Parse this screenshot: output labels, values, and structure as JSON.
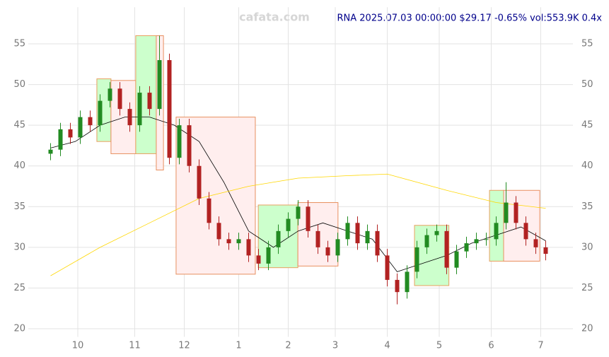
{
  "chart_data": {
    "type": "candlestick",
    "title": "RNA 2025.07.03 00:00:00 $29.17 -0.65% vol:553.9K 0.4x",
    "watermark": "cafata.com",
    "xlim": [
      -9,
      211
    ],
    "xticks": [
      {
        "value": 11,
        "label": "10"
      },
      {
        "value": 34,
        "label": "11"
      },
      {
        "value": 54,
        "label": "12"
      },
      {
        "value": 76,
        "label": "1"
      },
      {
        "value": 96,
        "label": "2"
      },
      {
        "value": 115,
        "label": "3"
      },
      {
        "value": 136,
        "label": "4"
      },
      {
        "value": 157,
        "label": "5"
      },
      {
        "value": 178,
        "label": "6"
      },
      {
        "value": 198,
        "label": "7"
      }
    ],
    "ylim": [
      19,
      59.5
    ],
    "yticks": [
      20,
      25,
      30,
      35,
      40,
      45,
      50,
      55
    ],
    "grid": true,
    "up_color": "#228b22",
    "down_color": "#b22222",
    "x": [
      0,
      4,
      8,
      12,
      16,
      20,
      24,
      28,
      32,
      36,
      40,
      44,
      48,
      52,
      56,
      60,
      64,
      68,
      72,
      76,
      80,
      84,
      88,
      92,
      96,
      100,
      104,
      108,
      112,
      116,
      120,
      124,
      128,
      132,
      136,
      140,
      144,
      148,
      152,
      156,
      160,
      164,
      168,
      172,
      176,
      180,
      184,
      188,
      192,
      196,
      200
    ],
    "open": [
      41.5,
      42,
      44.5,
      43.5,
      46,
      45,
      48,
      49.5,
      47,
      45,
      49,
      47,
      53,
      41,
      45,
      40,
      36,
      33,
      31,
      30.5,
      31,
      29,
      28,
      30,
      32,
      33.5,
      35,
      32,
      30,
      29,
      31,
      33,
      30.5,
      32,
      29,
      26,
      24.5,
      27,
      30,
      31.5,
      32,
      27.5,
      29.5,
      30.5,
      31,
      31,
      33,
      35.5,
      33,
      31,
      30
    ],
    "high": [
      42.8,
      45.3,
      45.3,
      46.8,
      46.8,
      48.8,
      50.3,
      50.3,
      47.8,
      49.8,
      49.8,
      56,
      53.8,
      45.8,
      45.8,
      40.8,
      36.8,
      33.8,
      31.8,
      31.8,
      31.8,
      29.8,
      30.8,
      32.8,
      34.3,
      35.8,
      35.8,
      32.8,
      30.8,
      31.8,
      33.8,
      33.8,
      32.8,
      32.8,
      29.8,
      26.8,
      27.8,
      30.8,
      32.3,
      32.8,
      32.8,
      30.3,
      31.3,
      31.8,
      31.8,
      33.8,
      38,
      36.3,
      33.8,
      31.8,
      30.8
    ],
    "low": [
      40.7,
      41.2,
      42.7,
      42.7,
      44.2,
      44.2,
      47.2,
      46.2,
      44.2,
      44.2,
      46.2,
      46.2,
      40.2,
      40.2,
      39.2,
      35.2,
      32.2,
      30.2,
      29.7,
      29.7,
      28.2,
      27.2,
      27.2,
      29.2,
      31.2,
      32.7,
      31.2,
      29.2,
      28.2,
      28.2,
      30.2,
      29.7,
      29.7,
      28.2,
      25.2,
      23,
      23.7,
      26.2,
      29.2,
      30.7,
      26.7,
      26.7,
      28.7,
      29.7,
      30.2,
      30.2,
      32.2,
      32.2,
      30.2,
      29.2,
      28.4
    ],
    "close": [
      42,
      44.5,
      43.5,
      46,
      45,
      48,
      49.5,
      47,
      45,
      49,
      47,
      53,
      41,
      45,
      40,
      36,
      33,
      31,
      30.5,
      31,
      29,
      28,
      30,
      32,
      33.5,
      35,
      32,
      30,
      29,
      31,
      33,
      30.5,
      32,
      29,
      26,
      24.5,
      27,
      30,
      31.5,
      32,
      27.5,
      29.5,
      30.5,
      31,
      31,
      33,
      35.5,
      33,
      31,
      30,
      29.2
    ],
    "lines": [
      {
        "color": "#000000",
        "x": [
          0,
          10,
          20,
          30,
          40,
          50,
          60,
          70,
          80,
          90,
          100,
          110,
          120,
          130,
          140,
          150,
          160,
          170,
          180,
          190,
          200
        ],
        "values": [
          42.2,
          43,
          45,
          46,
          46,
          45,
          43,
          38,
          32,
          30,
          32,
          33,
          32,
          31,
          27,
          28,
          29,
          30.5,
          31.5,
          32.5,
          30.8
        ]
      },
      {
        "color": "#ffd700",
        "x": [
          0,
          20,
          40,
          60,
          80,
          100,
          120,
          136,
          160,
          180,
          200
        ],
        "values": [
          26.5,
          30,
          33,
          36,
          37.5,
          38.5,
          38.8,
          39,
          37,
          35.5,
          34.8
        ]
      }
    ],
    "boxes": [
      {
        "kind": "up",
        "x": [
          18.7,
          24.4
        ],
        "low": 43,
        "high": 50.7
      },
      {
        "kind": "down",
        "x": [
          24.4,
          34.4
        ],
        "low": 41.5,
        "high": 50.5
      },
      {
        "kind": "up",
        "x": [
          34.4,
          42.7
        ],
        "low": 41.5,
        "high": 56
      },
      {
        "kind": "down",
        "x": [
          42.7,
          45.6
        ],
        "low": 39.5,
        "high": 56
      },
      {
        "kind": "down",
        "x": [
          50.7,
          82.7
        ],
        "low": 26.7,
        "high": 46
      },
      {
        "kind": "up",
        "x": [
          83.9,
          99.9
        ],
        "low": 27.5,
        "high": 35.2
      },
      {
        "kind": "down",
        "x": [
          99.9,
          116.1
        ],
        "low": 27.7,
        "high": 35.5
      },
      {
        "kind": "up",
        "x": [
          147,
          160.9
        ],
        "low": 25.3,
        "high": 32.7
      },
      {
        "kind": "up",
        "x": [
          177.3,
          183
        ],
        "low": 28.3,
        "high": 37
      },
      {
        "kind": "down",
        "x": [
          183,
          197.6
        ],
        "low": 28.3,
        "high": 37
      }
    ]
  }
}
